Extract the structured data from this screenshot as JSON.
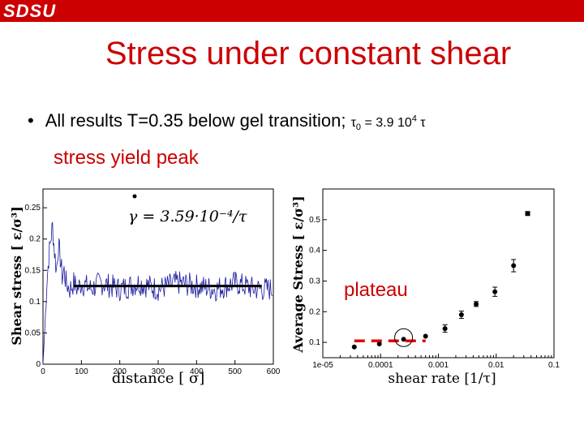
{
  "header": {
    "logo_text": "SDSU",
    "bar_color": "#cc0000"
  },
  "slide": {
    "title": "Stress under constant shear",
    "bullet_text": "All results T=0.35 below gel transition;",
    "tau_symbol": "τ",
    "tau_sub": "0",
    "tau_eq": " = 3.9 10",
    "tau_exp": "4",
    "tau_end": " τ",
    "yield_label": "stress yield peak",
    "plateau_label": "plateau"
  },
  "chart_data": [
    {
      "type": "line",
      "title": "",
      "xlabel": "distance [ σ]",
      "ylabel": "Shear stress [ ε/σ³]",
      "annotation": "γ = 3.59·10⁻⁴/τ",
      "xlim": [
        0,
        600
      ],
      "ylim": [
        0,
        0.28
      ],
      "xticks": [
        "0",
        "100",
        "200",
        "300",
        "400",
        "500",
        "600"
      ],
      "yticks": [
        "0",
        "0.05",
        "0.1",
        "0.15",
        "0.2",
        "0.25"
      ],
      "plateau_value": 0.125,
      "plateau_range": [
        80,
        570
      ],
      "series": [
        {
          "color": "#1a1aa0",
          "x": [
            0,
            5,
            10,
            15,
            20,
            25,
            30,
            35,
            40,
            45,
            50,
            55,
            60,
            70,
            80,
            90,
            100,
            125,
            150,
            200,
            250,
            300,
            350,
            400,
            450,
            500,
            550,
            600
          ],
          "y": [
            0.0,
            0.06,
            0.13,
            0.17,
            0.2,
            0.22,
            0.18,
            0.15,
            0.19,
            0.17,
            0.14,
            0.15,
            0.13,
            0.12,
            0.13,
            0.12,
            0.13,
            0.12,
            0.13,
            0.12,
            0.13,
            0.12,
            0.13,
            0.125,
            0.12,
            0.13,
            0.12,
            0.12
          ]
        }
      ]
    },
    {
      "type": "scatter",
      "title": "",
      "xlabel": "shear rate [1/τ]",
      "ylabel": "Average Stress [ ε/σ³]",
      "x_scale": "log",
      "xlim": [
        1e-05,
        0.1
      ],
      "ylim": [
        0.05,
        0.6
      ],
      "xticks": [
        "1e-05",
        "0.0001",
        "0.001",
        "0.01",
        "0.1"
      ],
      "yticks": [
        "0.1",
        "0.2",
        "0.3",
        "0.4",
        "0.5"
      ],
      "plateau_value": 0.105,
      "series": [
        {
          "x": [
            3.5e-05,
            9.5e-05,
            0.00025,
            0.0006,
            0.0013,
            0.0025,
            0.0045,
            0.0095,
            0.02,
            0.035
          ],
          "y": [
            0.085,
            0.095,
            0.11,
            0.12,
            0.145,
            0.19,
            0.225,
            0.265,
            0.35,
            0.52
          ],
          "err": [
            0,
            0,
            0,
            0,
            0.012,
            0.012,
            0.008,
            0.015,
            0.02,
            0
          ]
        }
      ]
    }
  ]
}
